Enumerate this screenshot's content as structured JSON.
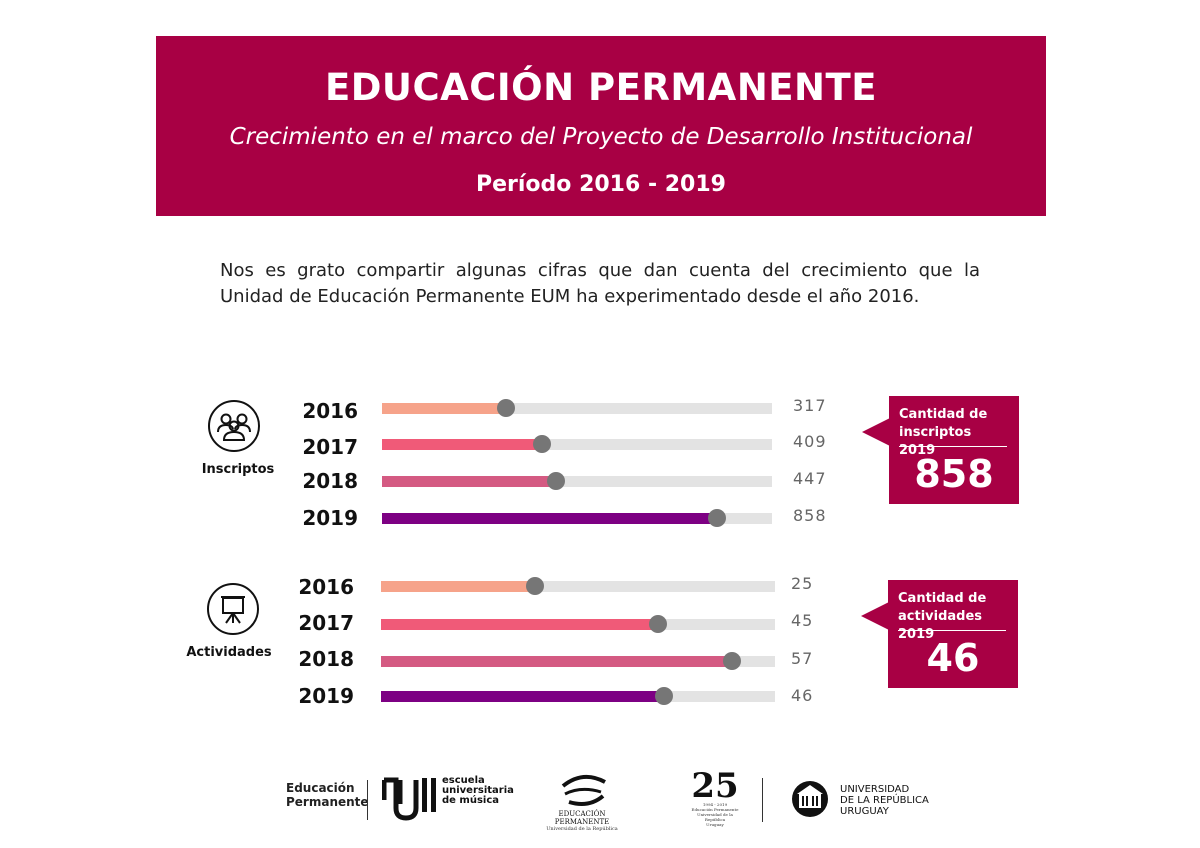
{
  "header": {
    "title": "EDUCACIÓN PERMANENTE",
    "subtitle": "Crecimiento en el marco del Proyecto de Desarrollo Institucional",
    "period": "Período 2016 - 2019"
  },
  "intro": {
    "line1": "Nos es grato compartir algunas cifras que dan cuenta del crecimiento que la",
    "line2": "Unidad de Educación Permanente EUM ha experimentado desde el año 2016."
  },
  "colors": {
    "brand": "#a80044",
    "track": "#e3e3e3",
    "dot": "#767676",
    "year_2016": "#f6a38a",
    "year_2017": "#f05a78",
    "year_2018": "#d45a82",
    "year_2019": "#7d0083"
  },
  "chart_data": [
    {
      "type": "bar",
      "orientation": "horizontal",
      "label": "Inscriptos",
      "icon": "people-group-icon",
      "categories": [
        "2016",
        "2017",
        "2018",
        "2019"
      ],
      "values": [
        317,
        409,
        447,
        858
      ],
      "xlim": [
        0,
        1000
      ],
      "grid": false,
      "callout": {
        "label": "Cantidad de inscriptos 2019",
        "value": "858"
      }
    },
    {
      "type": "bar",
      "orientation": "horizontal",
      "label": "Actividades",
      "icon": "presentation-board-icon",
      "categories": [
        "2016",
        "2017",
        "2018",
        "2019"
      ],
      "values": [
        25,
        45,
        57,
        46
      ],
      "xlim": [
        0,
        64
      ],
      "grid": false,
      "callout": {
        "label": "Cantidad de actividades 2019",
        "value": "46"
      }
    }
  ],
  "footer": {
    "ep_line1": "Educación",
    "ep_line2": "Permanente",
    "eum_line1": "escuela",
    "eum_line2": "universitaria",
    "eum_line3": "de música",
    "ep_logo_line1": "EDUCACIÓN PERMANENTE",
    "ep_logo_line2": "Universidad de la República",
    "anniv_number": "25",
    "anniv_years": "1994 - 2019",
    "anniv_line1": "Educación Permanente",
    "anniv_line2": "Universidad de la República",
    "anniv_line3": "Uruguay",
    "udelar_line1": "UNIVERSIDAD",
    "udelar_line2": "DE LA REPÚBLICA",
    "udelar_line3": "URUGUAY"
  }
}
